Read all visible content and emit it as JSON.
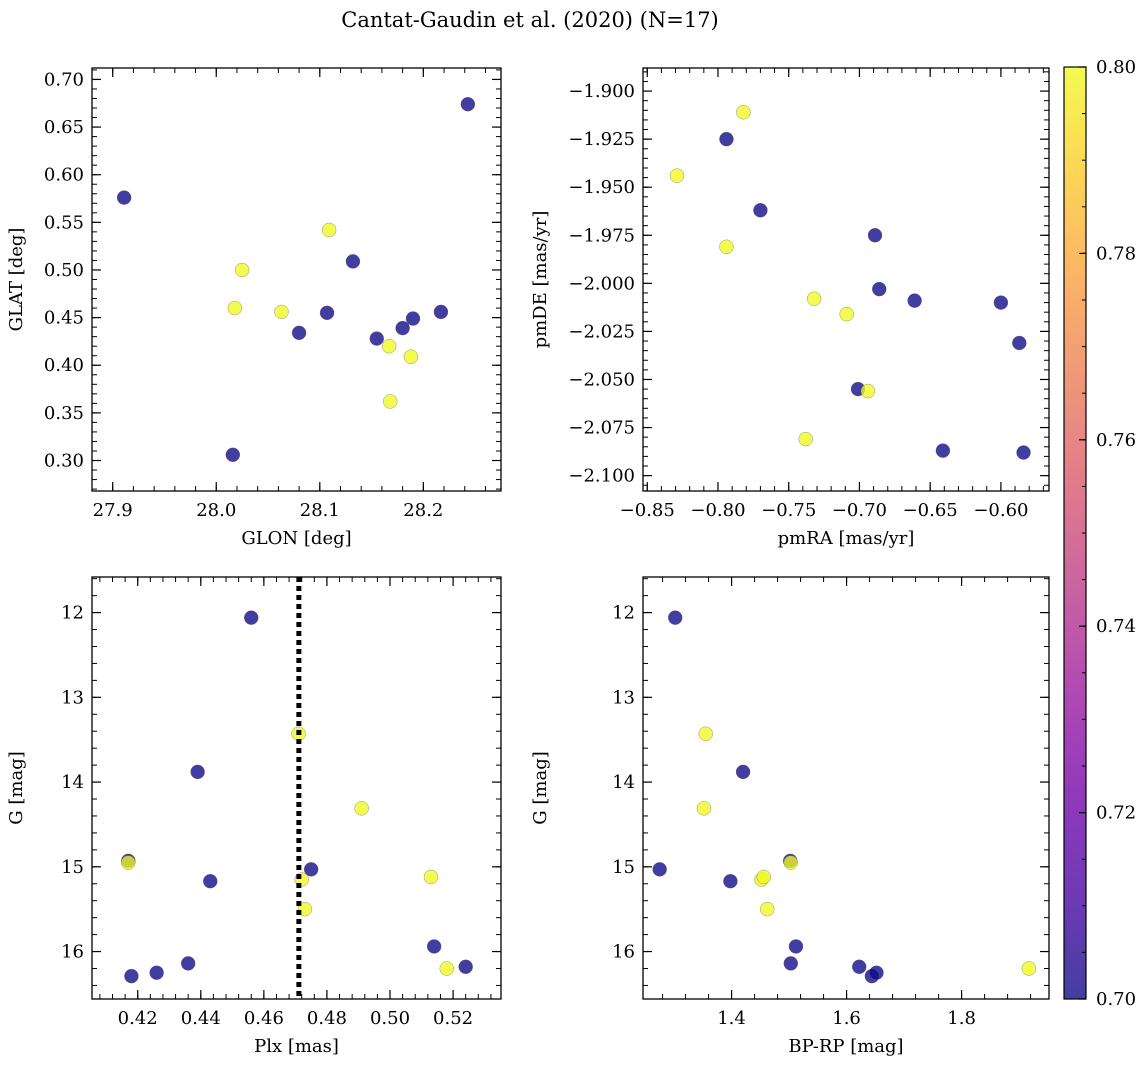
{
  "figure": {
    "title": "Cantat-Gaudin et al. (2020) (N=17)"
  },
  "colorbar": {
    "range": [
      0.7,
      0.8
    ],
    "ticks": [
      "0.70",
      "0.72",
      "0.74",
      "0.76",
      "0.78",
      "0.80"
    ],
    "colormap": "plasma",
    "colors": {
      "low": "#0d0887",
      "high": "#f0f921"
    }
  },
  "chart_data": [
    {
      "type": "scatter",
      "xlabel": "GLON [deg]",
      "ylabel": "GLAT [deg]",
      "xlim": [
        27.88,
        28.275
      ],
      "ylim": [
        0.268,
        0.712
      ],
      "xticks": [
        {
          "v": 27.9,
          "label": "27.9"
        },
        {
          "v": 28.0,
          "label": "28.0"
        },
        {
          "v": 28.1,
          "label": "28.1"
        },
        {
          "v": 28.2,
          "label": "28.2"
        }
      ],
      "yticks": [
        {
          "v": 0.3,
          "label": "0.30"
        },
        {
          "v": 0.35,
          "label": "0.35"
        },
        {
          "v": 0.4,
          "label": "0.40"
        },
        {
          "v": 0.45,
          "label": "0.45"
        },
        {
          "v": 0.5,
          "label": "0.50"
        },
        {
          "v": 0.55,
          "label": "0.55"
        },
        {
          "v": 0.6,
          "label": "0.60"
        },
        {
          "v": 0.65,
          "label": "0.65"
        },
        {
          "v": 0.7,
          "label": "0.70"
        }
      ],
      "points": [
        {
          "x": 27.911,
          "y": 0.576,
          "c": 0.7
        },
        {
          "x": 28.018,
          "y": 0.46,
          "c": 0.8
        },
        {
          "x": 28.025,
          "y": 0.5,
          "c": 0.8
        },
        {
          "x": 28.063,
          "y": 0.456,
          "c": 0.8
        },
        {
          "x": 28.08,
          "y": 0.434,
          "c": 0.7
        },
        {
          "x": 28.107,
          "y": 0.455,
          "c": 0.7
        },
        {
          "x": 28.109,
          "y": 0.542,
          "c": 0.8
        },
        {
          "x": 28.132,
          "y": 0.509,
          "c": 0.7
        },
        {
          "x": 28.155,
          "y": 0.428,
          "c": 0.7
        },
        {
          "x": 28.167,
          "y": 0.42,
          "c": 0.8
        },
        {
          "x": 28.168,
          "y": 0.362,
          "c": 0.8
        },
        {
          "x": 28.18,
          "y": 0.439,
          "c": 0.7
        },
        {
          "x": 28.188,
          "y": 0.409,
          "c": 0.8
        },
        {
          "x": 28.19,
          "y": 0.449,
          "c": 0.7
        },
        {
          "x": 28.217,
          "y": 0.456,
          "c": 0.7
        },
        {
          "x": 28.016,
          "y": 0.306,
          "c": 0.7
        },
        {
          "x": 28.243,
          "y": 0.674,
          "c": 0.7
        }
      ]
    },
    {
      "type": "scatter",
      "xlabel": "pmRA [mas/yr]",
      "ylabel": "pmDE [mas/yr]",
      "xlim": [
        -0.853,
        -0.566
      ],
      "ylim": [
        -2.108,
        -1.888
      ],
      "xticks": [
        {
          "v": -0.85,
          "label": "−0.85"
        },
        {
          "v": -0.8,
          "label": "−0.80"
        },
        {
          "v": -0.75,
          "label": "−0.75"
        },
        {
          "v": -0.7,
          "label": "−0.70"
        },
        {
          "v": -0.65,
          "label": "−0.65"
        },
        {
          "v": -0.6,
          "label": "−0.60"
        }
      ],
      "yticks": [
        {
          "v": -1.9,
          "label": "−1.900"
        },
        {
          "v": -1.925,
          "label": "−1.925"
        },
        {
          "v": -1.95,
          "label": "−1.950"
        },
        {
          "v": -1.975,
          "label": "−1.975"
        },
        {
          "v": -2.0,
          "label": "−2.000"
        },
        {
          "v": -2.025,
          "label": "−2.025"
        },
        {
          "v": -2.05,
          "label": "−2.050"
        },
        {
          "v": -2.075,
          "label": "−2.075"
        },
        {
          "v": -2.1,
          "label": "−2.100"
        }
      ],
      "points": [
        {
          "x": -0.829,
          "y": -1.944,
          "c": 0.8
        },
        {
          "x": -0.782,
          "y": -1.911,
          "c": 0.8
        },
        {
          "x": -0.794,
          "y": -1.925,
          "c": 0.7
        },
        {
          "x": -0.794,
          "y": -1.981,
          "c": 0.8
        },
        {
          "x": -0.77,
          "y": -1.962,
          "c": 0.7
        },
        {
          "x": -0.732,
          "y": -2.008,
          "c": 0.8
        },
        {
          "x": -0.709,
          "y": -2.016,
          "c": 0.8
        },
        {
          "x": -0.738,
          "y": -2.081,
          "c": 0.8
        },
        {
          "x": -0.701,
          "y": -2.055,
          "c": 0.7
        },
        {
          "x": -0.694,
          "y": -2.056,
          "c": 0.8
        },
        {
          "x": -0.689,
          "y": -1.975,
          "c": 0.7
        },
        {
          "x": -0.686,
          "y": -2.003,
          "c": 0.7
        },
        {
          "x": -0.661,
          "y": -2.009,
          "c": 0.7
        },
        {
          "x": -0.641,
          "y": -2.087,
          "c": 0.7
        },
        {
          "x": -0.6,
          "y": -2.01,
          "c": 0.7
        },
        {
          "x": -0.587,
          "y": -2.031,
          "c": 0.7
        },
        {
          "x": -0.584,
          "y": -2.088,
          "c": 0.7
        }
      ]
    },
    {
      "type": "scatter",
      "xlabel": "Plx [mas]",
      "ylabel": "G [mag]",
      "y_inverted": true,
      "xlim": [
        0.4055,
        0.5352
      ],
      "ylim": [
        16.56,
        11.58
      ],
      "xticks": [
        {
          "v": 0.42,
          "label": "0.42"
        },
        {
          "v": 0.44,
          "label": "0.44"
        },
        {
          "v": 0.46,
          "label": "0.46"
        },
        {
          "v": 0.48,
          "label": "0.48"
        },
        {
          "v": 0.5,
          "label": "0.50"
        },
        {
          "v": 0.52,
          "label": "0.52"
        }
      ],
      "yticks": [
        {
          "v": 12,
          "label": "12"
        },
        {
          "v": 13,
          "label": "13"
        },
        {
          "v": 14,
          "label": "14"
        },
        {
          "v": 15,
          "label": "15"
        },
        {
          "v": 16,
          "label": "16"
        }
      ],
      "vline": {
        "x": 0.4711,
        "style": "dotted"
      },
      "points": [
        {
          "x": 0.456,
          "y": 12.06,
          "c": 0.7
        },
        {
          "x": 0.471,
          "y": 13.43,
          "c": 0.8
        },
        {
          "x": 0.439,
          "y": 13.88,
          "c": 0.7
        },
        {
          "x": 0.491,
          "y": 14.31,
          "c": 0.8
        },
        {
          "x": 0.417,
          "y": 14.93,
          "c": 0.7
        },
        {
          "x": 0.417,
          "y": 14.95,
          "c": 0.8
        },
        {
          "x": 0.475,
          "y": 15.03,
          "c": 0.7
        },
        {
          "x": 0.513,
          "y": 15.12,
          "c": 0.8
        },
        {
          "x": 0.443,
          "y": 15.17,
          "c": 0.7
        },
        {
          "x": 0.472,
          "y": 15.15,
          "c": 0.8
        },
        {
          "x": 0.473,
          "y": 15.5,
          "c": 0.8
        },
        {
          "x": 0.514,
          "y": 15.94,
          "c": 0.7
        },
        {
          "x": 0.436,
          "y": 16.14,
          "c": 0.7
        },
        {
          "x": 0.518,
          "y": 16.2,
          "c": 0.8
        },
        {
          "x": 0.524,
          "y": 16.18,
          "c": 0.7
        },
        {
          "x": 0.426,
          "y": 16.25,
          "c": 0.7
        },
        {
          "x": 0.418,
          "y": 16.29,
          "c": 0.7
        }
      ]
    },
    {
      "type": "scatter",
      "xlabel": "BP-RP [mag]",
      "ylabel": "G [mag]",
      "y_inverted": true,
      "xlim": [
        1.246,
        1.952
      ],
      "ylim": [
        16.56,
        11.58
      ],
      "xticks": [
        {
          "v": 1.4,
          "label": "1.4"
        },
        {
          "v": 1.6,
          "label": "1.6"
        },
        {
          "v": 1.8,
          "label": "1.8"
        }
      ],
      "yticks": [
        {
          "v": 12,
          "label": "12"
        },
        {
          "v": 13,
          "label": "13"
        },
        {
          "v": 14,
          "label": "14"
        },
        {
          "v": 15,
          "label": "15"
        },
        {
          "v": 16,
          "label": "16"
        }
      ],
      "points": [
        {
          "x": 1.302,
          "y": 12.06,
          "c": 0.7
        },
        {
          "x": 1.355,
          "y": 13.43,
          "c": 0.8
        },
        {
          "x": 1.42,
          "y": 13.88,
          "c": 0.7
        },
        {
          "x": 1.352,
          "y": 14.31,
          "c": 0.8
        },
        {
          "x": 1.275,
          "y": 15.03,
          "c": 0.7
        },
        {
          "x": 1.502,
          "y": 14.93,
          "c": 0.7
        },
        {
          "x": 1.503,
          "y": 14.95,
          "c": 0.8
        },
        {
          "x": 1.398,
          "y": 15.17,
          "c": 0.7
        },
        {
          "x": 1.452,
          "y": 15.15,
          "c": 0.8
        },
        {
          "x": 1.456,
          "y": 15.12,
          "c": 0.8
        },
        {
          "x": 1.462,
          "y": 15.5,
          "c": 0.8
        },
        {
          "x": 1.512,
          "y": 15.94,
          "c": 0.7
        },
        {
          "x": 1.503,
          "y": 16.14,
          "c": 0.7
        },
        {
          "x": 1.622,
          "y": 16.18,
          "c": 0.7
        },
        {
          "x": 1.644,
          "y": 16.29,
          "c": 0.7
        },
        {
          "x": 1.652,
          "y": 16.25,
          "c": 0.7
        },
        {
          "x": 1.917,
          "y": 16.2,
          "c": 0.8
        }
      ]
    }
  ]
}
